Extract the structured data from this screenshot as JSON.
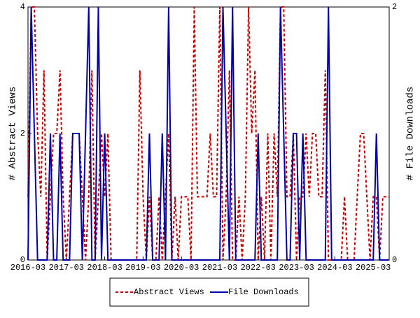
{
  "chart_data": {
    "type": "line",
    "ylabel": "# Abstract Views",
    "y2label": "# File Downloads",
    "categories": [
      "2016-03",
      null,
      null,
      null,
      null,
      null,
      null,
      null,
      null,
      null,
      null,
      null,
      "2017-03",
      null,
      null,
      null,
      null,
      null,
      null,
      null,
      null,
      null,
      null,
      null,
      "2018-03",
      null,
      null,
      null,
      null,
      null,
      null,
      null,
      null,
      null,
      null,
      null,
      "2019-03",
      null,
      null,
      null,
      null,
      null,
      null,
      null,
      null,
      null,
      null,
      null,
      "2020-03",
      null,
      null,
      null,
      null,
      null,
      null,
      null,
      null,
      null,
      null,
      null,
      "2021-03",
      null,
      null,
      null,
      null,
      null,
      null,
      null,
      null,
      null,
      null,
      null,
      "2022-03",
      null,
      null,
      null,
      null,
      null,
      null,
      null,
      null,
      null,
      null,
      null,
      "2023-03",
      null,
      null,
      null,
      null,
      null,
      null,
      null,
      null,
      null,
      null,
      null,
      "2024-03",
      null,
      null,
      null,
      null,
      null,
      null,
      null,
      null,
      null,
      null,
      null,
      "2025-03",
      null,
      null,
      null,
      null,
      null
    ],
    "series": [
      {
        "name": "Abstract Views",
        "color": "#cc0000",
        "dash": true,
        "values": [
          1,
          4,
          4,
          2,
          1,
          3,
          0,
          1,
          2,
          2,
          3,
          1,
          0,
          1,
          2,
          2,
          2,
          1,
          0,
          1,
          3,
          0,
          1,
          2,
          1,
          2,
          0,
          0,
          0,
          0,
          0,
          0,
          0,
          0,
          0,
          3,
          1,
          0,
          1,
          0,
          0,
          1,
          0,
          1,
          2,
          0,
          1,
          0,
          1,
          1,
          1,
          0,
          4,
          1,
          1,
          1,
          1,
          2,
          1,
          1,
          4,
          0,
          1,
          3,
          0,
          0,
          1,
          0,
          1,
          4,
          2,
          3,
          0,
          1,
          0,
          2,
          0,
          2,
          1,
          4,
          4,
          1,
          1,
          2,
          0,
          1,
          1,
          2,
          1,
          2,
          2,
          1,
          1,
          3,
          0,
          0,
          0,
          0,
          0,
          1,
          0,
          0,
          0,
          1,
          2,
          2,
          1,
          0,
          1,
          1,
          0,
          1,
          1,
          1
        ]
      },
      {
        "name": "File Downloads",
        "color": "#0000aa",
        "axis": "y2",
        "values": [
          0,
          2,
          1,
          0,
          0,
          0,
          0,
          1,
          0,
          0,
          1,
          0,
          0,
          0,
          1,
          1,
          1,
          0,
          1,
          2,
          0,
          0,
          2,
          0,
          1,
          0,
          0,
          0,
          0,
          0,
          0,
          0,
          0,
          0,
          0,
          0,
          0,
          0,
          1,
          0,
          0,
          0,
          1,
          0,
          2,
          0,
          0,
          0,
          0,
          0,
          0,
          0,
          0,
          0,
          0,
          0,
          0,
          0,
          0,
          0,
          0,
          2,
          1,
          0,
          2,
          0,
          0,
          0,
          0,
          0,
          0,
          0,
          1,
          0,
          0,
          0,
          0,
          0,
          0,
          2,
          1,
          0,
          0,
          1,
          1,
          0,
          1,
          0,
          0,
          0,
          0,
          0,
          0,
          0,
          2,
          0,
          0,
          0,
          0,
          0,
          0,
          0,
          0,
          0,
          0,
          0,
          0,
          0,
          0,
          1,
          0,
          0,
          0,
          0
        ]
      }
    ],
    "ylim": [
      0,
      4
    ],
    "yticks": [
      0,
      2,
      4
    ],
    "y2lim": [
      0,
      2
    ],
    "y2ticks": [
      0,
      2
    ],
    "legend": "bottom"
  }
}
